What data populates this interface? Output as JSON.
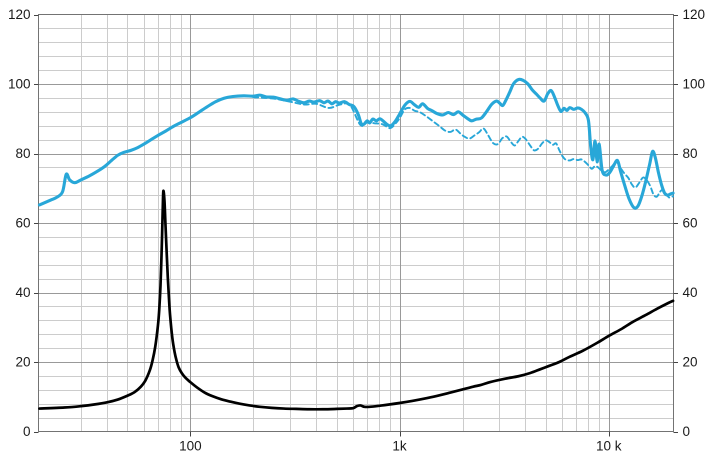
{
  "page": {
    "background": "#ffffff"
  },
  "chart_data": {
    "type": "line",
    "title": "",
    "xlabel": "",
    "ylabel": "",
    "x_scale": "log",
    "xlim": [
      18.8,
      20400
    ],
    "ylim": [
      0,
      120
    ],
    "grid": true,
    "y_minor_step": 4,
    "y_major_step": 20,
    "x_minor_lines": [
      30,
      40,
      50,
      60,
      70,
      80,
      90,
      200,
      300,
      400,
      500,
      600,
      700,
      800,
      900,
      2000,
      3000,
      4000,
      5000,
      6000,
      7000,
      8000,
      9000
    ],
    "x_ticks": [
      {
        "value": 100,
        "label": "100"
      },
      {
        "value": 1000,
        "label": "1k"
      },
      {
        "value": 10000,
        "label": "10 k"
      }
    ],
    "y_ticks_left": [
      {
        "value": 120,
        "label": "120"
      },
      {
        "value": 100,
        "label": "100"
      },
      {
        "value": 80,
        "label": "80"
      },
      {
        "value": 60,
        "label": "60"
      },
      {
        "value": 40,
        "label": "40"
      },
      {
        "value": 20,
        "label": "20"
      },
      {
        "value": 0,
        "label": "0"
      }
    ],
    "y_ticks_right": [
      {
        "value": 120,
        "label": "120"
      },
      {
        "value": 100,
        "label": "100"
      },
      {
        "value": 80,
        "label": "80"
      },
      {
        "value": 60,
        "label": "60"
      },
      {
        "value": 40,
        "label": "40"
      },
      {
        "value": 20,
        "label": "20"
      },
      {
        "value": 0,
        "label": "0"
      }
    ],
    "colors": {
      "response": "#28a7d8",
      "impedance": "#000000",
      "grid_minor": "#cccccc",
      "grid_major": "#999999",
      "border": "#737373",
      "tick": "#444444",
      "label": "#1a1a1a"
    },
    "series": [
      {
        "name": "spl-off-axis-dashed",
        "style": "dashed",
        "color_key": "response",
        "width": 1.9,
        "points": [
          [
            200,
            96.2
          ],
          [
            250,
            95.8
          ],
          [
            300,
            94.9
          ],
          [
            350,
            94.1
          ],
          [
            400,
            94.3
          ],
          [
            460,
            93.1
          ],
          [
            520,
            94.1
          ],
          [
            580,
            93.9
          ],
          [
            650,
            88.2
          ],
          [
            700,
            88.9
          ],
          [
            760,
            88.7
          ],
          [
            830,
            88.4
          ],
          [
            900,
            87.3
          ],
          [
            955,
            88.6
          ],
          [
            1000,
            90.1
          ],
          [
            1060,
            92.7
          ],
          [
            1120,
            93.1
          ],
          [
            1180,
            92.3
          ],
          [
            1250,
            91.9
          ],
          [
            1350,
            90.6
          ],
          [
            1450,
            89.2
          ],
          [
            1550,
            87.9
          ],
          [
            1650,
            86.6
          ],
          [
            1750,
            86.2
          ],
          [
            1850,
            86.9
          ],
          [
            1950,
            85.8
          ],
          [
            2050,
            84.8
          ],
          [
            2160,
            84.3
          ],
          [
            2280,
            85.2
          ],
          [
            2400,
            86.1
          ],
          [
            2520,
            87.2
          ],
          [
            2650,
            85.3
          ],
          [
            2800,
            83.0
          ],
          [
            2950,
            82.7
          ],
          [
            3100,
            84.4
          ],
          [
            3250,
            84.9
          ],
          [
            3400,
            83.4
          ],
          [
            3550,
            82.3
          ],
          [
            3700,
            83.6
          ],
          [
            3850,
            84.8
          ],
          [
            4000,
            84.2
          ],
          [
            4200,
            82.4
          ],
          [
            4400,
            80.9
          ],
          [
            4600,
            81.4
          ],
          [
            4800,
            82.9
          ],
          [
            5000,
            83.8
          ],
          [
            5200,
            83.3
          ],
          [
            5400,
            82.5
          ],
          [
            5600,
            82.9
          ],
          [
            5800,
            81.0
          ],
          [
            6000,
            79.3
          ],
          [
            6200,
            78.3
          ],
          [
            6500,
            78.0
          ],
          [
            6800,
            78.4
          ],
          [
            7100,
            78.1
          ],
          [
            7400,
            78.3
          ],
          [
            7700,
            77.6
          ],
          [
            8000,
            76.6
          ],
          [
            8300,
            75.6
          ],
          [
            8600,
            76.4
          ],
          [
            8900,
            76.0
          ],
          [
            9200,
            75.2
          ],
          [
            9600,
            74.6
          ],
          [
            10000,
            75.4
          ],
          [
            10400,
            76.4
          ],
          [
            10900,
            77.6
          ],
          [
            11400,
            75.8
          ],
          [
            11900,
            74.2
          ],
          [
            12400,
            73.0
          ],
          [
            12900,
            71.1
          ],
          [
            13400,
            70.2
          ],
          [
            14000,
            71.6
          ],
          [
            14600,
            73.1
          ],
          [
            15200,
            72.3
          ],
          [
            15800,
            70.6
          ],
          [
            16400,
            68.1
          ],
          [
            17000,
            67.6
          ],
          [
            17600,
            69.0
          ],
          [
            18200,
            69.6
          ],
          [
            18800,
            68.4
          ],
          [
            19500,
            67.3
          ],
          [
            20300,
            67.7
          ]
        ]
      },
      {
        "name": "spl-on-axis-solid",
        "style": "solid",
        "color_key": "response",
        "width": 3.1,
        "points": [
          [
            19,
            65.2
          ],
          [
            21.5,
            66.6
          ],
          [
            23,
            67.4
          ],
          [
            24.5,
            69.0
          ],
          [
            25.5,
            74.0
          ],
          [
            26.5,
            72.4
          ],
          [
            28,
            71.6
          ],
          [
            30,
            72.4
          ],
          [
            33,
            73.6
          ],
          [
            36,
            74.9
          ],
          [
            39,
            76.3
          ],
          [
            42,
            78.0
          ],
          [
            45,
            79.5
          ],
          [
            48,
            80.3
          ],
          [
            52,
            80.9
          ],
          [
            56,
            81.7
          ],
          [
            60,
            82.7
          ],
          [
            65,
            84.0
          ],
          [
            70,
            85.2
          ],
          [
            76,
            86.4
          ],
          [
            83,
            87.8
          ],
          [
            90,
            88.9
          ],
          [
            100,
            90.3
          ],
          [
            110,
            91.9
          ],
          [
            120,
            93.4
          ],
          [
            132,
            94.9
          ],
          [
            145,
            95.9
          ],
          [
            160,
            96.4
          ],
          [
            180,
            96.6
          ],
          [
            200,
            96.5
          ],
          [
            215,
            96.8
          ],
          [
            230,
            96.3
          ],
          [
            250,
            96.2
          ],
          [
            270,
            95.7
          ],
          [
            290,
            95.3
          ],
          [
            310,
            95.7
          ],
          [
            330,
            95.0
          ],
          [
            350,
            94.6
          ],
          [
            370,
            95.1
          ],
          [
            390,
            94.8
          ],
          [
            415,
            95.2
          ],
          [
            435,
            94.6
          ],
          [
            455,
            95.1
          ],
          [
            475,
            94.3
          ],
          [
            495,
            94.9
          ],
          [
            515,
            94.5
          ],
          [
            545,
            94.9
          ],
          [
            575,
            94.1
          ],
          [
            605,
            93.5
          ],
          [
            635,
            91.2
          ],
          [
            655,
            88.7
          ],
          [
            675,
            88.4
          ],
          [
            700,
            89.4
          ],
          [
            720,
            88.8
          ],
          [
            745,
            89.9
          ],
          [
            775,
            89.4
          ],
          [
            805,
            90.0
          ],
          [
            840,
            89.2
          ],
          [
            875,
            88.3
          ],
          [
            910,
            88.0
          ],
          [
            955,
            89.3
          ],
          [
            1000,
            91.3
          ],
          [
            1060,
            93.9
          ],
          [
            1120,
            95.0
          ],
          [
            1180,
            94.0
          ],
          [
            1235,
            93.3
          ],
          [
            1290,
            94.3
          ],
          [
            1360,
            93.0
          ],
          [
            1430,
            92.3
          ],
          [
            1510,
            91.5
          ],
          [
            1610,
            91.1
          ],
          [
            1710,
            91.8
          ],
          [
            1810,
            91.2
          ],
          [
            1910,
            92.0
          ],
          [
            2010,
            91.0
          ],
          [
            2110,
            90.1
          ],
          [
            2210,
            89.4
          ],
          [
            2330,
            89.9
          ],
          [
            2460,
            90.2
          ],
          [
            2610,
            92.1
          ],
          [
            2760,
            94.2
          ],
          [
            2910,
            95.1
          ],
          [
            3010,
            94.5
          ],
          [
            3110,
            93.8
          ],
          [
            3210,
            95.1
          ],
          [
            3360,
            97.6
          ],
          [
            3510,
            100.1
          ],
          [
            3710,
            101.3
          ],
          [
            3910,
            101.0
          ],
          [
            4110,
            100.0
          ],
          [
            4310,
            98.3
          ],
          [
            4510,
            97.1
          ],
          [
            4710,
            95.9
          ],
          [
            4910,
            95.1
          ],
          [
            5110,
            97.2
          ],
          [
            5310,
            98.1
          ],
          [
            5510,
            96.2
          ],
          [
            5710,
            93.8
          ],
          [
            5910,
            92.1
          ],
          [
            6110,
            93.0
          ],
          [
            6310,
            92.4
          ],
          [
            6510,
            93.2
          ],
          [
            6810,
            92.7
          ],
          [
            7110,
            93.1
          ],
          [
            7410,
            92.7
          ],
          [
            7710,
            91.7
          ],
          [
            8000,
            89.5
          ],
          [
            8200,
            82.0
          ],
          [
            8400,
            78.2
          ],
          [
            8600,
            83.6
          ],
          [
            8800,
            77.6
          ],
          [
            9000,
            82.7
          ],
          [
            9300,
            75.2
          ],
          [
            9700,
            73.8
          ],
          [
            10100,
            74.5
          ],
          [
            10500,
            76.2
          ],
          [
            11000,
            78.0
          ],
          [
            11400,
            74.8
          ],
          [
            11900,
            71.0
          ],
          [
            12500,
            67.0
          ],
          [
            13200,
            64.4
          ],
          [
            13800,
            64.9
          ],
          [
            14400,
            67.8
          ],
          [
            15000,
            71.8
          ],
          [
            15700,
            77.0
          ],
          [
            16200,
            80.6
          ],
          [
            16700,
            78.8
          ],
          [
            17300,
            74.4
          ],
          [
            17900,
            70.9
          ],
          [
            18500,
            68.6
          ],
          [
            19100,
            68.0
          ],
          [
            19800,
            68.4
          ],
          [
            20300,
            68.6
          ]
        ]
      },
      {
        "name": "impedance",
        "style": "solid",
        "color_key": "impedance",
        "width": 2.7,
        "points": [
          [
            19,
            6.6
          ],
          [
            25,
            6.9
          ],
          [
            30,
            7.3
          ],
          [
            35,
            7.8
          ],
          [
            40,
            8.4
          ],
          [
            45,
            9.2
          ],
          [
            50,
            10.3
          ],
          [
            54,
            11.3
          ],
          [
            58,
            12.9
          ],
          [
            61,
            14.7
          ],
          [
            64,
            17.6
          ],
          [
            66,
            20.5
          ],
          [
            68,
            24.5
          ],
          [
            70,
            30.5
          ],
          [
            71,
            35.0
          ],
          [
            72,
            42.0
          ],
          [
            73,
            53.0
          ],
          [
            73.8,
            64.0
          ],
          [
            74.3,
            69.2
          ],
          [
            75.2,
            66.5
          ],
          [
            76,
            60.0
          ],
          [
            77,
            52.0
          ],
          [
            78,
            44.5
          ],
          [
            79,
            38.5
          ],
          [
            80,
            33.5
          ],
          [
            82,
            27.0
          ],
          [
            84,
            23.0
          ],
          [
            86,
            20.3
          ],
          [
            88,
            18.4
          ],
          [
            91,
            16.8
          ],
          [
            95,
            15.4
          ],
          [
            100,
            14.2
          ],
          [
            108,
            12.6
          ],
          [
            117,
            11.2
          ],
          [
            127,
            10.2
          ],
          [
            140,
            9.3
          ],
          [
            155,
            8.6
          ],
          [
            172,
            8.0
          ],
          [
            192,
            7.5
          ],
          [
            215,
            7.1
          ],
          [
            245,
            6.8
          ],
          [
            280,
            6.6
          ],
          [
            320,
            6.5
          ],
          [
            370,
            6.4
          ],
          [
            430,
            6.4
          ],
          [
            500,
            6.5
          ],
          [
            560,
            6.6
          ],
          [
            600,
            6.7
          ],
          [
            625,
            7.3
          ],
          [
            650,
            7.5
          ],
          [
            680,
            7.1
          ],
          [
            720,
            7.1
          ],
          [
            800,
            7.4
          ],
          [
            900,
            7.8
          ],
          [
            1000,
            8.2
          ],
          [
            1150,
            8.8
          ],
          [
            1300,
            9.4
          ],
          [
            1500,
            10.2
          ],
          [
            1750,
            11.2
          ],
          [
            2000,
            12.1
          ],
          [
            2250,
            12.9
          ],
          [
            2450,
            13.4
          ],
          [
            2700,
            14.2
          ],
          [
            3200,
            15.2
          ],
          [
            3700,
            15.9
          ],
          [
            4200,
            16.8
          ],
          [
            4700,
            17.9
          ],
          [
            5200,
            18.9
          ],
          [
            5800,
            20.0
          ],
          [
            6500,
            21.5
          ],
          [
            7500,
            23.2
          ],
          [
            8800,
            25.5
          ],
          [
            10000,
            27.5
          ],
          [
            11500,
            29.5
          ],
          [
            13000,
            31.5
          ],
          [
            15000,
            33.5
          ],
          [
            17000,
            35.3
          ],
          [
            19000,
            36.8
          ],
          [
            20300,
            37.6
          ]
        ]
      }
    ]
  }
}
